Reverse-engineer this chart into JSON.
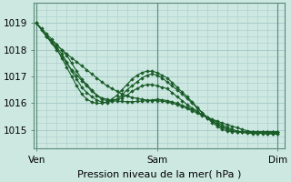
{
  "bg_color": "#cce8e0",
  "grid_color": "#aacccc",
  "line_color": "#1a5c28",
  "marker_color": "#1a5c28",
  "xlabel": "Pression niveau de la mer( hPa )",
  "xlabel_fontsize": 8,
  "yticks": [
    1015,
    1016,
    1017,
    1018,
    1019
  ],
  "ylim": [
    1014.3,
    1019.6
  ],
  "xtick_labels": [
    "Ven",
    "Sam",
    "Dim"
  ],
  "xtick_positions": [
    0,
    24,
    48
  ],
  "xlim": [
    -0.5,
    49.5
  ],
  "series": [
    {
      "x": [
        0,
        1,
        2,
        3,
        4,
        5,
        6,
        7,
        8,
        9,
        10,
        11,
        12,
        13,
        14,
        15,
        16,
        17,
        18,
        19,
        20,
        21,
        22,
        23,
        24,
        25,
        26,
        27,
        28,
        29,
        30,
        31,
        32,
        33,
        34,
        35,
        36,
        37,
        38,
        39,
        40,
        41,
        42,
        43,
        44,
        45,
        46,
        47,
        48
      ],
      "y": [
        1019.0,
        1018.8,
        1018.6,
        1018.4,
        1018.2,
        1018.0,
        1017.85,
        1017.7,
        1017.55,
        1017.4,
        1017.25,
        1017.1,
        1016.95,
        1016.8,
        1016.65,
        1016.55,
        1016.45,
        1016.35,
        1016.28,
        1016.22,
        1016.18,
        1016.15,
        1016.12,
        1016.1,
        1016.1,
        1016.08,
        1016.05,
        1016.0,
        1015.95,
        1015.88,
        1015.8,
        1015.72,
        1015.63,
        1015.55,
        1015.47,
        1015.4,
        1015.33,
        1015.26,
        1015.2,
        1015.14,
        1015.08,
        1015.02,
        1014.97,
        1014.93,
        1014.9,
        1014.88,
        1014.86,
        1014.85,
        1014.84
      ]
    },
    {
      "x": [
        0,
        1,
        2,
        3,
        4,
        5,
        6,
        7,
        8,
        9,
        10,
        11,
        12,
        13,
        14,
        15,
        16,
        17,
        18,
        19,
        20,
        21,
        22,
        23,
        24,
        25,
        26,
        27,
        28,
        29,
        30,
        31,
        32,
        33,
        34,
        35,
        36,
        37,
        38,
        39,
        40,
        41,
        42,
        43,
        44,
        45,
        46,
        47,
        48
      ],
      "y": [
        1019.0,
        1018.75,
        1018.5,
        1018.25,
        1018.0,
        1017.75,
        1017.5,
        1017.25,
        1017.05,
        1016.85,
        1016.65,
        1016.45,
        1016.3,
        1016.2,
        1016.15,
        1016.1,
        1016.08,
        1016.07,
        1016.06,
        1016.06,
        1016.07,
        1016.08,
        1016.1,
        1016.12,
        1016.15,
        1016.13,
        1016.1,
        1016.05,
        1016.0,
        1015.93,
        1015.85,
        1015.77,
        1015.68,
        1015.58,
        1015.48,
        1015.38,
        1015.28,
        1015.18,
        1015.1,
        1015.02,
        1014.96,
        1014.91,
        1014.88,
        1014.87,
        1014.87,
        1014.87,
        1014.87,
        1014.87,
        1014.87
      ]
    },
    {
      "x": [
        0,
        2,
        4,
        5,
        6,
        7,
        8,
        9,
        10,
        11,
        12,
        13,
        14,
        15,
        16,
        17,
        18,
        19,
        20,
        21,
        22,
        23,
        24,
        25,
        26,
        27,
        28,
        29,
        30,
        31,
        32,
        33,
        34,
        35,
        36,
        37,
        38,
        39,
        40,
        41,
        42,
        43,
        44,
        45,
        46,
        47,
        48
      ],
      "y": [
        1019.0,
        1018.5,
        1018.2,
        1018.0,
        1017.8,
        1017.5,
        1017.2,
        1016.9,
        1016.7,
        1016.5,
        1016.3,
        1016.15,
        1016.1,
        1016.12,
        1016.15,
        1016.2,
        1016.3,
        1016.45,
        1016.55,
        1016.65,
        1016.7,
        1016.7,
        1016.65,
        1016.6,
        1016.55,
        1016.4,
        1016.25,
        1016.1,
        1015.95,
        1015.82,
        1015.7,
        1015.57,
        1015.45,
        1015.33,
        1015.22,
        1015.12,
        1015.04,
        1014.97,
        1014.93,
        1014.92,
        1014.91,
        1014.91,
        1014.91,
        1014.91,
        1014.91,
        1014.91,
        1014.91
      ]
    },
    {
      "x": [
        0,
        2,
        4,
        5,
        6,
        7,
        8,
        9,
        10,
        11,
        12,
        13,
        14,
        15,
        16,
        17,
        18,
        19,
        20,
        21,
        22,
        23,
        24,
        25,
        26,
        27,
        28,
        29,
        30,
        31,
        32,
        33,
        34,
        35,
        36,
        37,
        38,
        39,
        40,
        41,
        42,
        43,
        44,
        45,
        46,
        47,
        48
      ],
      "y": [
        1019.0,
        1018.5,
        1018.1,
        1017.85,
        1017.55,
        1017.2,
        1016.9,
        1016.6,
        1016.4,
        1016.25,
        1016.12,
        1016.05,
        1016.02,
        1016.08,
        1016.15,
        1016.3,
        1016.5,
        1016.65,
        1016.8,
        1016.95,
        1017.05,
        1017.1,
        1017.05,
        1016.95,
        1016.8,
        1016.65,
        1016.5,
        1016.35,
        1016.18,
        1016.0,
        1015.82,
        1015.65,
        1015.48,
        1015.33,
        1015.2,
        1015.1,
        1015.02,
        1014.97,
        1014.94,
        1014.93,
        1014.93,
        1014.93,
        1014.93,
        1014.93,
        1014.93,
        1014.93,
        1014.93
      ]
    },
    {
      "x": [
        0,
        2,
        4,
        5,
        6,
        7,
        8,
        9,
        10,
        11,
        12,
        13,
        14,
        15,
        16,
        17,
        18,
        19,
        20,
        21,
        22,
        23,
        24,
        25,
        26,
        27,
        28,
        29,
        30,
        31,
        32,
        33,
        34,
        35,
        36,
        37,
        38,
        39,
        40,
        41,
        42,
        43,
        44,
        45,
        46,
        47,
        48
      ],
      "y": [
        1019.0,
        1018.5,
        1018.05,
        1017.7,
        1017.35,
        1017.0,
        1016.65,
        1016.35,
        1016.15,
        1016.05,
        1016.0,
        1016.0,
        1016.05,
        1016.15,
        1016.3,
        1016.5,
        1016.7,
        1016.9,
        1017.05,
        1017.15,
        1017.2,
        1017.2,
        1017.15,
        1017.05,
        1016.95,
        1016.78,
        1016.6,
        1016.42,
        1016.25,
        1016.05,
        1015.85,
        1015.65,
        1015.45,
        1015.28,
        1015.14,
        1015.02,
        1014.96,
        1014.94,
        1014.93,
        1014.93,
        1014.93,
        1014.93,
        1014.93,
        1014.93,
        1014.93,
        1014.93,
        1014.93
      ]
    }
  ]
}
